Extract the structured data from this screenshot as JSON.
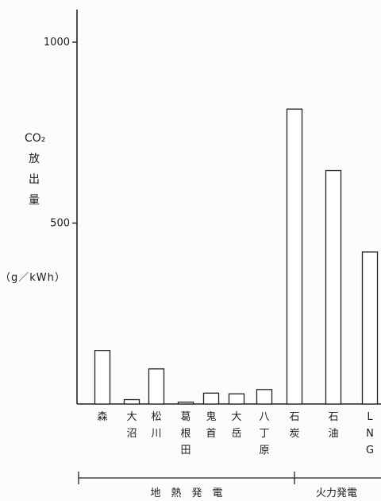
{
  "chart_data": {
    "type": "bar",
    "ylabel_chars": [
      "CO₂",
      "放",
      "出",
      "量"
    ],
    "yunit": "（g／kWh）",
    "ylim": [
      0,
      1000
    ],
    "yticks": [
      "1000",
      "500"
    ],
    "ytick_values": [
      1000,
      500
    ],
    "categories": [
      "森",
      "大沼",
      "松川",
      "葛根田",
      "鬼首",
      "大岳",
      "八丁原",
      "石炭",
      "石油",
      "LNG"
    ],
    "values": [
      148,
      12,
      97,
      5,
      30,
      28,
      40,
      815,
      645,
      420
    ],
    "groups": [
      {
        "label": "地　熱　発　電",
        "count": 7
      },
      {
        "label": "火力発電",
        "count": 3
      }
    ]
  }
}
